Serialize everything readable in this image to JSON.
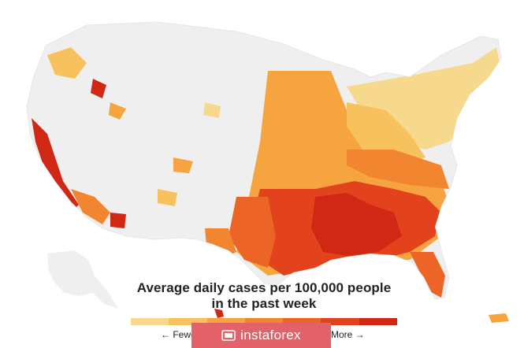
{
  "legend": {
    "title_line1": "Average daily cases per 100,000 people",
    "title_line2": "in the past week",
    "fewer_label": "← Fewer",
    "more_label": "More →",
    "scale_colors": [
      "#f7d98d",
      "#f7c25e",
      "#f5a43f",
      "#f28630",
      "#ec6526",
      "#e2431c",
      "#d12715"
    ]
  },
  "watermark": {
    "brand": "instaforex",
    "icon": "instaforex-logo-icon",
    "color": "#e2626a"
  },
  "map": {
    "base_color": "#efefef",
    "border_color": "#ffffff",
    "hotspot_regions": [
      "Southeast",
      "Florida",
      "Gulf Coast",
      "Midwest",
      "California"
    ]
  }
}
